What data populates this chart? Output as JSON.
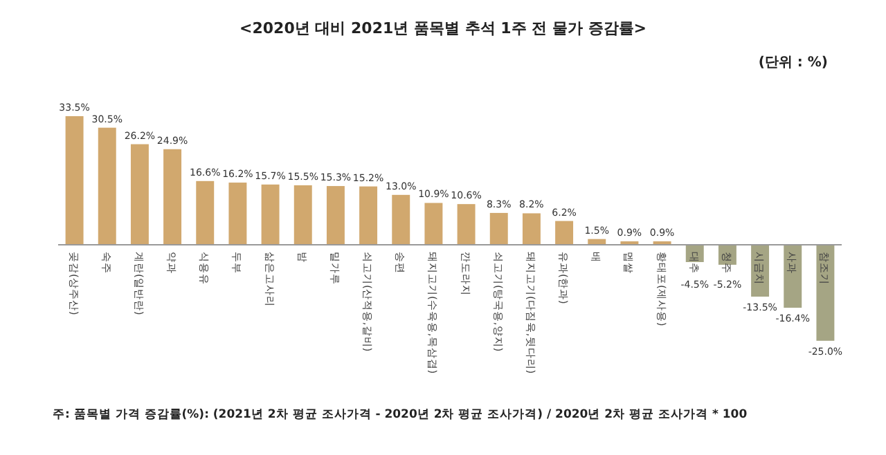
{
  "chart_data": {
    "type": "bar",
    "title": "<2020년 대비 2021년 품목별 추석 1주 전 물가 증감률>",
    "annotations": [
      "(단위 : %)",
      "주: 품목별 가격 증감률(%): (2021년 2차 평균 조사가격 - 2020년 2차 평균 조사가격) / 2020년 2차 평균 조사가격 * 100"
    ],
    "categories": [
      "곶감(상주산)",
      "숙주",
      "계란(일반란)",
      "약과",
      "식용유",
      "두부",
      "삶은고사리",
      "밤",
      "밀가루",
      "쇠고기(산적용,갈비)",
      "송편",
      "돼지고기(수육용,목삼겹)",
      "깐도라지",
      "쇠고기(탕국용,양지)",
      "돼지고기(다짐육,뒷다리)",
      "유과(한과)",
      "배",
      "멥쌀",
      "황태포(제사용)",
      "대추",
      "청주",
      "시금치",
      "사과",
      "참조기"
    ],
    "values": [
      33.5,
      30.5,
      26.2,
      24.9,
      16.6,
      16.2,
      15.7,
      15.5,
      15.3,
      15.2,
      13.0,
      10.9,
      10.6,
      8.3,
      8.2,
      6.2,
      1.5,
      0.9,
      0.9,
      -4.5,
      -5.2,
      -13.5,
      -16.4,
      -25.0
    ],
    "value_labels": [
      "33.5%",
      "30.5%",
      "26.2%",
      "24.9%",
      "16.6%",
      "16.2%",
      "15.7%",
      "15.5%",
      "15.3%",
      "15.2%",
      "13.0%",
      "10.9%",
      "10.6%",
      "8.3%",
      "8.2%",
      "6.2%",
      "1.5%",
      "0.9%",
      "0.9%",
      "-4.5%",
      "-5.2%",
      "-13.5%",
      "-16.4%",
      "-25.0%"
    ],
    "colors": [
      "#d1a86e",
      "#d1a86e",
      "#d1a86e",
      "#d1a86e",
      "#d1a86e",
      "#d1a86e",
      "#d1a86e",
      "#d1a86e",
      "#d1a86e",
      "#d1a86e",
      "#d1a86e",
      "#d1a86e",
      "#d1a86e",
      "#d1a86e",
      "#d1a86e",
      "#d1a86e",
      "#d1a86e",
      "#d1a86e",
      "#d1a86e",
      "#a5a584",
      "#a5a584",
      "#a5a584",
      "#a5a584",
      "#a5a584"
    ]
  }
}
